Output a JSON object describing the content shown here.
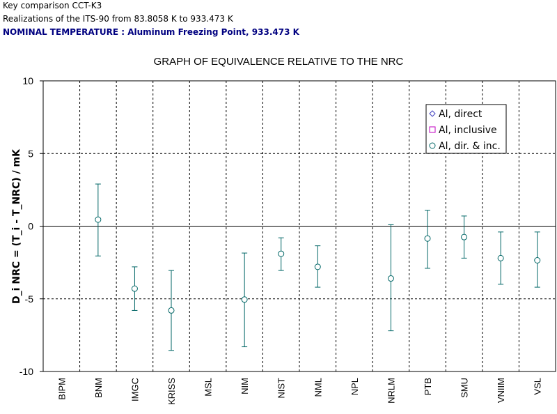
{
  "header": {
    "line1": "Key comparison CCT-K3",
    "line2": "Realizations of the ITS-90 from 83.8058 K to 933.473 K",
    "line3": "NOMINAL TEMPERATURE : Aluminum Freezing Point, 933.473 K"
  },
  "chart_data": {
    "type": "scatter",
    "title": "GRAPH OF EQUIVALENCE RELATIVE TO THE NRC",
    "ylabel": "D_i NRC = (T_i - T_NRC) / mK",
    "ylim": [
      -10,
      10
    ],
    "yticks": [
      10,
      5,
      0,
      -5,
      -10
    ],
    "grid": true,
    "legend_position": "top-right",
    "colors": {
      "direct": "#4040c0",
      "inclusive": "#c000c0",
      "dir_inc": "#006666",
      "title": "#000080"
    },
    "legend": [
      {
        "key": "direct",
        "label": "Al, direct",
        "marker": "diamond"
      },
      {
        "key": "inclusive",
        "label": "Al, inclusive",
        "marker": "square"
      },
      {
        "key": "dir_inc",
        "label": "Al, dir. & inc.",
        "marker": "circle"
      }
    ],
    "categories": [
      "BIPM",
      "BNM",
      "IMGC",
      "KRISS",
      "MSL",
      "NIM",
      "NIST",
      "NML",
      "NPL",
      "NRLM",
      "PTB",
      "SMU",
      "VNIIM",
      "VSL"
    ],
    "series": [
      {
        "name": "Al, dir. & inc.",
        "points": [
          {
            "category": "BNM",
            "y": 0.45,
            "low": -2.05,
            "high": 2.9
          },
          {
            "category": "IMGC",
            "y": -4.3,
            "low": -5.8,
            "high": -2.8
          },
          {
            "category": "KRISS",
            "y": -5.8,
            "low": -8.55,
            "high": -3.05
          },
          {
            "category": "NIM",
            "y": -5.05,
            "low": -8.3,
            "high": -1.85
          },
          {
            "category": "NIST",
            "y": -1.9,
            "low": -3.05,
            "high": -0.8
          },
          {
            "category": "NML",
            "y": -2.8,
            "low": -4.2,
            "high": -1.35
          },
          {
            "category": "NRLM",
            "y": -3.6,
            "low": -7.2,
            "high": 0.1
          },
          {
            "category": "PTB",
            "y": -0.85,
            "low": -2.9,
            "high": 1.1
          },
          {
            "category": "SMU",
            "y": -0.75,
            "low": -2.2,
            "high": 0.7
          },
          {
            "category": "VNIIM",
            "y": -2.2,
            "low": -4.0,
            "high": -0.4
          },
          {
            "category": "VSL",
            "y": -2.35,
            "low": -4.2,
            "high": -0.4
          }
        ]
      }
    ]
  }
}
